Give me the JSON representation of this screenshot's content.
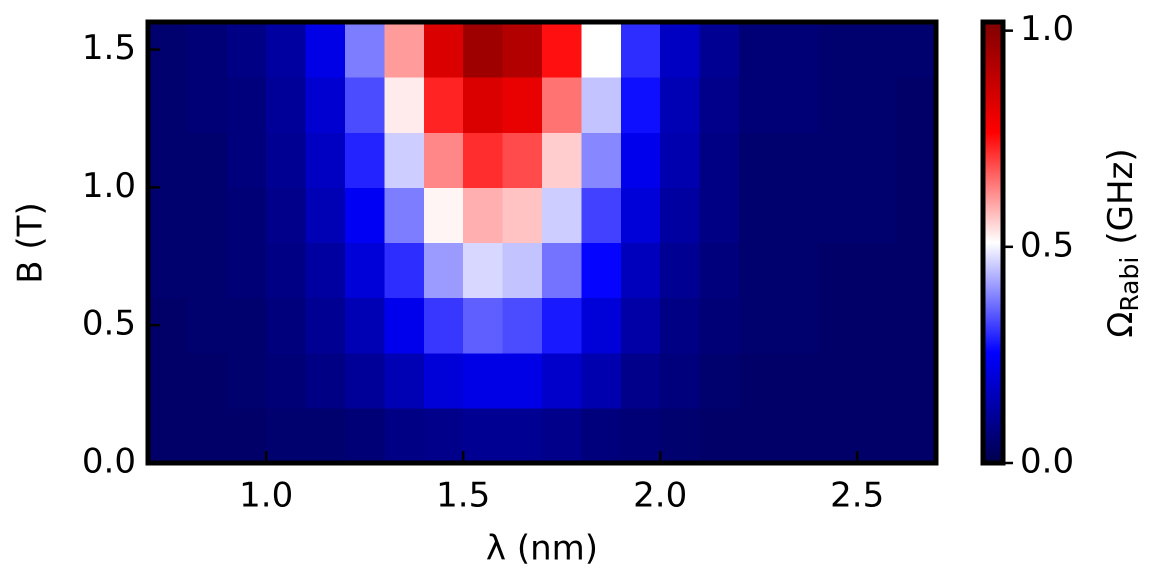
{
  "chart_data": {
    "type": "heatmap",
    "xlabel": "λ (nm)",
    "ylabel": "B (T)",
    "colorbar_label": {
      "symbol": "Ω",
      "subscript": "Rabi",
      "unit": "(GHz)"
    },
    "xlim": [
      0.7,
      2.7
    ],
    "ylim": [
      0,
      1.6
    ],
    "xticks": [
      {
        "value": 1,
        "label": "1.0"
      },
      1.5,
      {
        "value": 2,
        "label": "2.0"
      },
      2.5
    ],
    "yticks": [
      {
        "value": 0,
        "label": "0.0"
      },
      0.5,
      {
        "value": 1,
        "label": "1.0"
      },
      1.5
    ],
    "x_edges": [
      0.7,
      0.8,
      0.9,
      1.0,
      1.1,
      1.2,
      1.3,
      1.4,
      1.5,
      1.6,
      1.7,
      1.8,
      1.9,
      2.0,
      2.1,
      2.2,
      2.3,
      2.4,
      2.5,
      2.6,
      2.7
    ],
    "y_edges": [
      0,
      0.2,
      0.4,
      0.6,
      0.8,
      1.0,
      1.2,
      1.4,
      1.6
    ],
    "z": [
      [
        0.04,
        0.04,
        0.04,
        0.05,
        0.05,
        0.06,
        0.08,
        0.09,
        0.1,
        0.1,
        0.09,
        0.07,
        0.06,
        0.05,
        0.04,
        0.04,
        0.04,
        0.04,
        0.04,
        0.04
      ],
      [
        0.04,
        0.04,
        0.05,
        0.06,
        0.08,
        0.11,
        0.15,
        0.2,
        0.22,
        0.22,
        0.18,
        0.14,
        0.09,
        0.07,
        0.05,
        0.04,
        0.04,
        0.04,
        0.04,
        0.04
      ],
      [
        0.04,
        0.05,
        0.05,
        0.07,
        0.1,
        0.15,
        0.23,
        0.31,
        0.35,
        0.33,
        0.28,
        0.2,
        0.13,
        0.08,
        0.06,
        0.05,
        0.05,
        0.04,
        0.04,
        0.04
      ],
      [
        0.05,
        0.05,
        0.06,
        0.08,
        0.12,
        0.2,
        0.3,
        0.41,
        0.47,
        0.45,
        0.37,
        0.26,
        0.16,
        0.1,
        0.07,
        0.05,
        0.05,
        0.04,
        0.04,
        0.04
      ],
      [
        0.05,
        0.05,
        0.06,
        0.09,
        0.15,
        0.24,
        0.38,
        0.52,
        0.59,
        0.57,
        0.46,
        0.32,
        0.2,
        0.12,
        0.08,
        0.05,
        0.05,
        0.05,
        0.05,
        0.04
      ],
      [
        0.05,
        0.05,
        0.07,
        0.1,
        0.17,
        0.29,
        0.46,
        0.63,
        0.72,
        0.69,
        0.56,
        0.39,
        0.23,
        0.14,
        0.08,
        0.05,
        0.05,
        0.05,
        0.05,
        0.04
      ],
      [
        0.05,
        0.06,
        0.07,
        0.11,
        0.19,
        0.33,
        0.53,
        0.73,
        0.84,
        0.81,
        0.65,
        0.45,
        0.27,
        0.15,
        0.09,
        0.06,
        0.06,
        0.05,
        0.05,
        0.04
      ],
      [
        0.05,
        0.06,
        0.08,
        0.12,
        0.22,
        0.38,
        0.61,
        0.84,
        0.96,
        0.92,
        0.75,
        0.51,
        0.3,
        0.17,
        0.1,
        0.06,
        0.06,
        0.05,
        0.05,
        0.05
      ]
    ],
    "clim": [
      0,
      1.02
    ],
    "cticks": [
      {
        "value": 0,
        "label": "0.0"
      },
      0.5,
      {
        "value": 1,
        "label": "1.0"
      }
    ],
    "colormap": [
      "#00004c",
      "#0000ff",
      "#ffffff",
      "#ff0000",
      "#800000"
    ]
  }
}
